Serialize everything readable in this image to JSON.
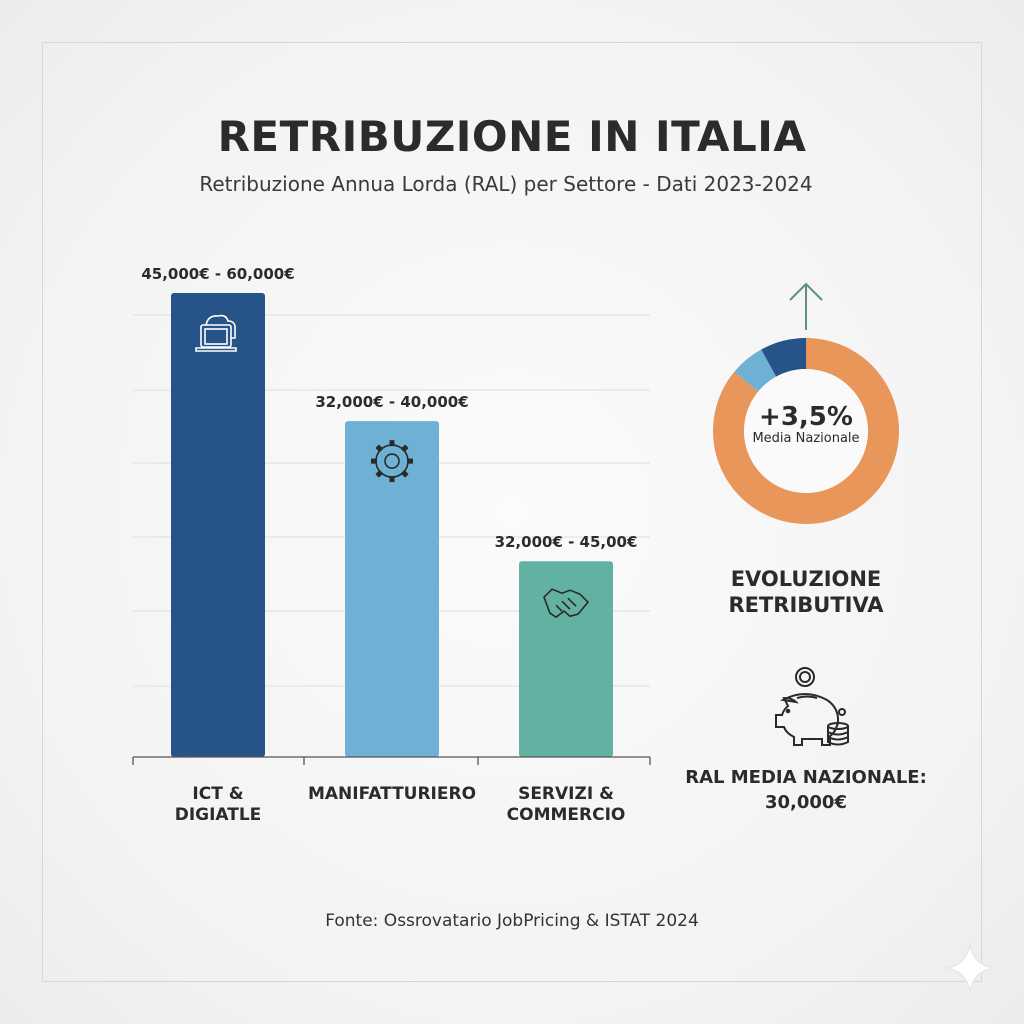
{
  "header": {
    "title": "RETRIBUZIONE IN ITALIA",
    "subtitle": "Retribuzione Annua Lorda (RAL) per Settore - Dati 2023-2024"
  },
  "chart_data": [
    {
      "type": "bar",
      "categories": [
        "ICT & DIGIATLE",
        "MANIFATTURIERO",
        "SERVIZI & COMMERCIO"
      ],
      "category_lines": [
        [
          "ICT &",
          "DIGIATLE"
        ],
        [
          "MANIFATTURIERO"
        ],
        [
          "SERVIZI &",
          "COMMERCIO"
        ]
      ],
      "data_labels": [
        "45,000€ - 60,000€",
        "32,000€ - 40,000€",
        "32,000€ - 45,00€"
      ],
      "icons": [
        "laptop-cloud-icon",
        "gear-icon",
        "handshake-icon"
      ],
      "colors": [
        "#265488",
        "#6fb1d5",
        "#62b1a2"
      ],
      "grid": true
    },
    {
      "type": "pie",
      "style": "donut",
      "segments": [
        {
          "color": "#e8965a",
          "share": 86
        },
        {
          "color": "#6fb1d5",
          "share": 6
        },
        {
          "color": "#265488",
          "share": 8
        }
      ],
      "center_value": "+3,5%",
      "center_label": "Media Nazionale"
    }
  ],
  "side": {
    "heading_line1": "EVOLUZIONE",
    "heading_line2": "RETRIBUTIVA",
    "ral_line1": "RAL MEDIA NAZIONALE:",
    "ral_line2": "30,000€"
  },
  "footer": {
    "source": "Fonte: Ossrovatario JobPricing & ISTAT 2024"
  }
}
